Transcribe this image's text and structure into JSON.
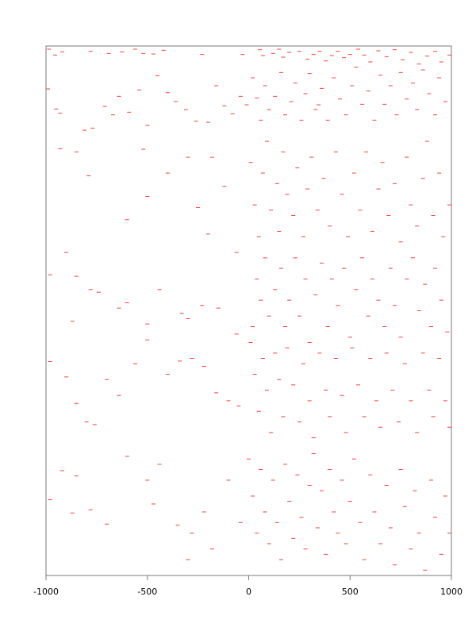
{
  "colors": {
    "marks": "#e8453c",
    "axis": "#7a7a7a",
    "background": "#ffffff"
  },
  "chart_data": {
    "type": "scatter",
    "title": "",
    "xlabel": "",
    "ylabel": "",
    "xlim": [
      -1000,
      1000
    ],
    "ylim": [
      0,
      1
    ],
    "x_ticks": [
      -1000,
      -500,
      0,
      500,
      1000
    ],
    "x_tick_labels": [
      "-1000",
      "-500",
      "0",
      "500",
      "1000"
    ],
    "y_ticks_shown": false,
    "grid": false,
    "legend": "none",
    "marker": "short horizontal dash",
    "note": "",
    "points": [
      [
        -985,
        0.994
      ],
      [
        -955,
        0.983
      ],
      [
        -920,
        0.989
      ],
      [
        -780,
        0.99
      ],
      [
        -690,
        0.986
      ],
      [
        -625,
        0.989
      ],
      [
        -560,
        0.994
      ],
      [
        -520,
        0.986
      ],
      [
        -470,
        0.985
      ],
      [
        -420,
        0.992
      ],
      [
        -230,
        0.984
      ],
      [
        -30,
        0.984
      ],
      [
        55,
        0.993
      ],
      [
        70,
        0.982
      ],
      [
        120,
        0.986
      ],
      [
        150,
        0.994
      ],
      [
        170,
        0.979
      ],
      [
        200,
        0.988
      ],
      [
        250,
        0.99
      ],
      [
        290,
        0.975
      ],
      [
        320,
        0.984
      ],
      [
        350,
        0.99
      ],
      [
        380,
        0.972
      ],
      [
        410,
        0.982
      ],
      [
        440,
        0.99
      ],
      [
        470,
        0.978
      ],
      [
        500,
        0.984
      ],
      [
        540,
        0.994
      ],
      [
        570,
        0.983
      ],
      [
        600,
        0.97
      ],
      [
        640,
        0.991
      ],
      [
        680,
        0.98
      ],
      [
        720,
        0.993
      ],
      [
        760,
        0.974
      ],
      [
        800,
        0.988
      ],
      [
        840,
        0.966
      ],
      [
        880,
        0.981
      ],
      [
        920,
        0.99
      ],
      [
        950,
        0.97
      ],
      [
        990,
        0.983
      ],
      [
        -990,
        0.919
      ],
      [
        -950,
        0.881
      ],
      [
        -930,
        0.873
      ],
      [
        -810,
        0.841
      ],
      [
        -770,
        0.845
      ],
      [
        -710,
        0.886
      ],
      [
        -670,
        0.87
      ],
      [
        -640,
        0.905
      ],
      [
        -590,
        0.875
      ],
      [
        -540,
        0.917
      ],
      [
        -500,
        0.85
      ],
      [
        -450,
        0.944
      ],
      [
        -400,
        0.912
      ],
      [
        -360,
        0.895
      ],
      [
        -310,
        0.88
      ],
      [
        -260,
        0.858
      ],
      [
        -200,
        0.856
      ],
      [
        -160,
        0.925
      ],
      [
        -120,
        0.887
      ],
      [
        -80,
        0.872
      ],
      [
        -40,
        0.905
      ],
      [
        -10,
        0.889
      ],
      [
        20,
        0.94
      ],
      [
        40,
        0.902
      ],
      [
        60,
        0.86
      ],
      [
        80,
        0.925
      ],
      [
        100,
        0.88
      ],
      [
        130,
        0.905
      ],
      [
        160,
        0.95
      ],
      [
        180,
        0.87
      ],
      [
        210,
        0.895
      ],
      [
        230,
        0.93
      ],
      [
        260,
        0.86
      ],
      [
        280,
        0.91
      ],
      [
        300,
        0.948
      ],
      [
        330,
        0.88
      ],
      [
        345,
        0.889
      ],
      [
        360,
        0.92
      ],
      [
        390,
        0.86
      ],
      [
        420,
        0.94
      ],
      [
        450,
        0.9
      ],
      [
        480,
        0.87
      ],
      [
        510,
        0.925
      ],
      [
        530,
        0.96
      ],
      [
        560,
        0.89
      ],
      [
        590,
        0.915
      ],
      [
        620,
        0.86
      ],
      [
        650,
        0.945
      ],
      [
        670,
        0.89
      ],
      [
        700,
        0.925
      ],
      [
        730,
        0.87
      ],
      [
        750,
        0.95
      ],
      [
        780,
        0.9
      ],
      [
        810,
        0.93
      ],
      [
        830,
        0.88
      ],
      [
        860,
        0.955
      ],
      [
        890,
        0.91
      ],
      [
        920,
        0.87
      ],
      [
        940,
        0.94
      ],
      [
        970,
        0.895
      ],
      [
        -930,
        0.806
      ],
      [
        -850,
        0.8
      ],
      [
        -790,
        0.755
      ],
      [
        -600,
        0.672
      ],
      [
        -520,
        0.805
      ],
      [
        -500,
        0.716
      ],
      [
        -400,
        0.76
      ],
      [
        -300,
        0.79
      ],
      [
        -250,
        0.695
      ],
      [
        -200,
        0.645
      ],
      [
        -180,
        0.79
      ],
      [
        -120,
        0.735
      ],
      [
        -60,
        0.61
      ],
      [
        10,
        0.78
      ],
      [
        30,
        0.7
      ],
      [
        50,
        0.64
      ],
      [
        70,
        0.76
      ],
      [
        90,
        0.82
      ],
      [
        110,
        0.69
      ],
      [
        140,
        0.74
      ],
      [
        150,
        0.65
      ],
      [
        170,
        0.8
      ],
      [
        190,
        0.72
      ],
      [
        220,
        0.68
      ],
      [
        240,
        0.77
      ],
      [
        270,
        0.64
      ],
      [
        290,
        0.73
      ],
      [
        310,
        0.79
      ],
      [
        340,
        0.69
      ],
      [
        370,
        0.75
      ],
      [
        400,
        0.66
      ],
      [
        430,
        0.8
      ],
      [
        460,
        0.72
      ],
      [
        490,
        0.64
      ],
      [
        520,
        0.76
      ],
      [
        550,
        0.69
      ],
      [
        580,
        0.8
      ],
      [
        610,
        0.65
      ],
      [
        640,
        0.73
      ],
      [
        660,
        0.78
      ],
      [
        690,
        0.68
      ],
      [
        720,
        0.74
      ],
      [
        750,
        0.63
      ],
      [
        780,
        0.79
      ],
      [
        800,
        0.7
      ],
      [
        830,
        0.66
      ],
      [
        860,
        0.75
      ],
      [
        880,
        0.82
      ],
      [
        910,
        0.68
      ],
      [
        940,
        0.76
      ],
      [
        960,
        0.64
      ],
      [
        990,
        0.7
      ],
      [
        -980,
        0.568
      ],
      [
        -900,
        0.61
      ],
      [
        -870,
        0.48
      ],
      [
        -850,
        0.565
      ],
      [
        -780,
        0.54
      ],
      [
        -740,
        0.535
      ],
      [
        -640,
        0.505
      ],
      [
        -600,
        0.515
      ],
      [
        -500,
        0.475
      ],
      [
        -440,
        0.54
      ],
      [
        -330,
        0.495
      ],
      [
        -300,
        0.485
      ],
      [
        -230,
        0.51
      ],
      [
        -150,
        0.505
      ],
      [
        -60,
        0.456
      ],
      [
        20,
        0.47
      ],
      [
        40,
        0.56
      ],
      [
        60,
        0.52
      ],
      [
        80,
        0.6
      ],
      [
        100,
        0.49
      ],
      [
        130,
        0.54
      ],
      [
        160,
        0.58
      ],
      [
        180,
        0.47
      ],
      [
        200,
        0.52
      ],
      [
        230,
        0.6
      ],
      [
        250,
        0.49
      ],
      [
        280,
        0.56
      ],
      [
        300,
        0.44
      ],
      [
        330,
        0.53
      ],
      [
        360,
        0.59
      ],
      [
        390,
        0.47
      ],
      [
        410,
        0.56
      ],
      [
        440,
        0.51
      ],
      [
        470,
        0.58
      ],
      [
        500,
        0.45
      ],
      [
        530,
        0.54
      ],
      [
        560,
        0.6
      ],
      [
        590,
        0.49
      ],
      [
        610,
        0.56
      ],
      [
        640,
        0.52
      ],
      [
        670,
        0.47
      ],
      [
        700,
        0.58
      ],
      [
        720,
        0.51
      ],
      [
        750,
        0.45
      ],
      [
        780,
        0.56
      ],
      [
        810,
        0.6
      ],
      [
        840,
        0.5
      ],
      [
        870,
        0.55
      ],
      [
        900,
        0.47
      ],
      [
        920,
        0.58
      ],
      [
        950,
        0.52
      ],
      [
        980,
        0.46
      ],
      [
        -980,
        0.404
      ],
      [
        -900,
        0.375
      ],
      [
        -850,
        0.325
      ],
      [
        -800,
        0.29
      ],
      [
        -760,
        0.285
      ],
      [
        -700,
        0.37
      ],
      [
        -640,
        0.34
      ],
      [
        -560,
        0.4
      ],
      [
        -500,
        0.445
      ],
      [
        -400,
        0.38
      ],
      [
        -340,
        0.405
      ],
      [
        -280,
        0.41
      ],
      [
        -220,
        0.395
      ],
      [
        -160,
        0.345
      ],
      [
        -100,
        0.33
      ],
      [
        -50,
        0.32
      ],
      [
        10,
        0.44
      ],
      [
        30,
        0.38
      ],
      [
        50,
        0.31
      ],
      [
        70,
        0.41
      ],
      [
        90,
        0.35
      ],
      [
        110,
        0.27
      ],
      [
        130,
        0.42
      ],
      [
        150,
        0.37
      ],
      [
        170,
        0.3
      ],
      [
        190,
        0.43
      ],
      [
        220,
        0.36
      ],
      [
        250,
        0.29
      ],
      [
        270,
        0.4
      ],
      [
        300,
        0.33
      ],
      [
        320,
        0.26
      ],
      [
        350,
        0.42
      ],
      [
        380,
        0.35
      ],
      [
        400,
        0.3
      ],
      [
        430,
        0.41
      ],
      [
        460,
        0.34
      ],
      [
        480,
        0.27
      ],
      [
        510,
        0.43
      ],
      [
        540,
        0.36
      ],
      [
        570,
        0.3
      ],
      [
        600,
        0.41
      ],
      [
        630,
        0.33
      ],
      [
        650,
        0.28
      ],
      [
        680,
        0.42
      ],
      [
        710,
        0.35
      ],
      [
        740,
        0.29
      ],
      [
        770,
        0.4
      ],
      [
        800,
        0.33
      ],
      [
        830,
        0.27
      ],
      [
        860,
        0.42
      ],
      [
        890,
        0.35
      ],
      [
        910,
        0.3
      ],
      [
        940,
        0.41
      ],
      [
        970,
        0.33
      ],
      [
        990,
        0.28
      ],
      [
        -980,
        0.143
      ],
      [
        -920,
        0.198
      ],
      [
        -870,
        0.118
      ],
      [
        -850,
        0.188
      ],
      [
        -780,
        0.124
      ],
      [
        -700,
        0.097
      ],
      [
        -600,
        0.225
      ],
      [
        -500,
        0.18
      ],
      [
        -470,
        0.135
      ],
      [
        -440,
        0.21
      ],
      [
        -350,
        0.095
      ],
      [
        -300,
        0.03
      ],
      [
        -280,
        0.08
      ],
      [
        -220,
        0.12
      ],
      [
        -180,
        0.05
      ],
      [
        -100,
        0.18
      ],
      [
        -40,
        0.1
      ],
      [
        0,
        0.22
      ],
      [
        20,
        0.15
      ],
      [
        40,
        0.08
      ],
      [
        60,
        0.2
      ],
      [
        80,
        0.12
      ],
      [
        100,
        0.06
      ],
      [
        120,
        0.18
      ],
      [
        140,
        0.1
      ],
      [
        160,
        0.03
      ],
      [
        180,
        0.21
      ],
      [
        200,
        0.14
      ],
      [
        220,
        0.07
      ],
      [
        240,
        0.19
      ],
      [
        260,
        0.11
      ],
      [
        280,
        0.05
      ],
      [
        300,
        0.17
      ],
      [
        320,
        0.23
      ],
      [
        340,
        0.09
      ],
      [
        360,
        0.16
      ],
      [
        380,
        0.04
      ],
      [
        400,
        0.2
      ],
      [
        420,
        0.12
      ],
      [
        440,
        0.08
      ],
      [
        460,
        0.18
      ],
      [
        480,
        0.06
      ],
      [
        500,
        0.14
      ],
      [
        520,
        0.22
      ],
      [
        550,
        0.1
      ],
      [
        570,
        0.03
      ],
      [
        600,
        0.19
      ],
      [
        620,
        0.12
      ],
      [
        650,
        0.06
      ],
      [
        680,
        0.17
      ],
      [
        700,
        0.09
      ],
      [
        720,
        0.02
      ],
      [
        750,
        0.2
      ],
      [
        770,
        0.13
      ],
      [
        800,
        0.05
      ],
      [
        820,
        0.16
      ],
      [
        840,
        0.08
      ],
      [
        870,
        0.01
      ],
      [
        900,
        0.18
      ],
      [
        920,
        0.11
      ],
      [
        950,
        0.04
      ],
      [
        970,
        0.15
      ],
      [
        990,
        0.08
      ]
    ]
  }
}
